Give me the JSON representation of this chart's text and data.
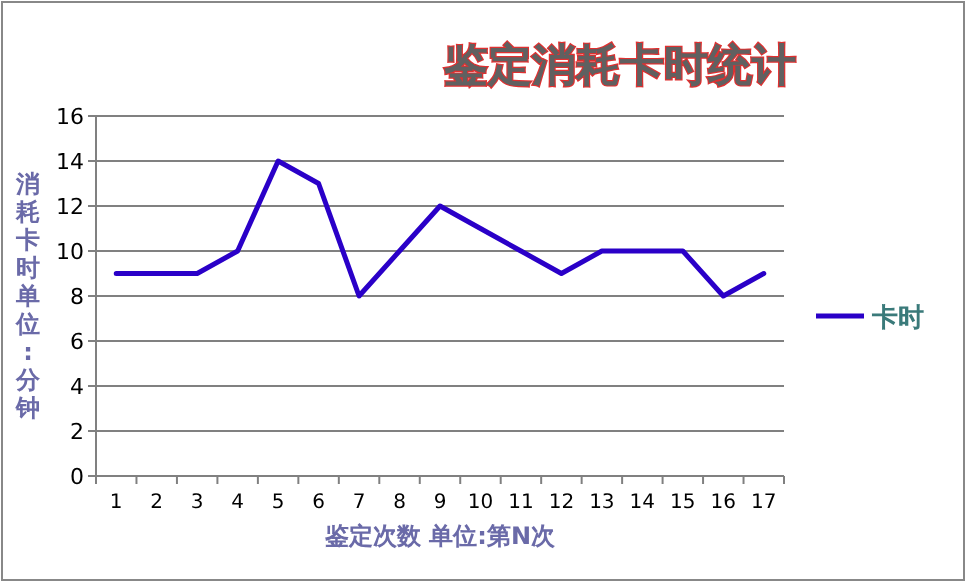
{
  "chart_data": {
    "type": "line",
    "title": "鉴定消耗卡时统计",
    "xlabel": "鉴定次数 单位:第N次",
    "ylabel": "消耗卡时单位:分钟",
    "categories": [
      "1",
      "2",
      "3",
      "4",
      "5",
      "6",
      "7",
      "8",
      "9",
      "10",
      "11",
      "12",
      "13",
      "14",
      "15",
      "16",
      "17"
    ],
    "series": [
      {
        "name": "卡时",
        "color": "#2a00c8",
        "values": [
          9,
          9,
          9,
          10,
          14,
          13,
          8,
          10,
          12,
          11,
          10,
          9,
          10,
          10,
          10,
          8,
          9
        ]
      }
    ],
    "ylim": [
      0,
      16
    ],
    "yticks": [
      0,
      2,
      4,
      6,
      8,
      10,
      12,
      14,
      16
    ],
    "grid": "y",
    "legend": "right",
    "marker": "none",
    "line_style": "solid"
  }
}
